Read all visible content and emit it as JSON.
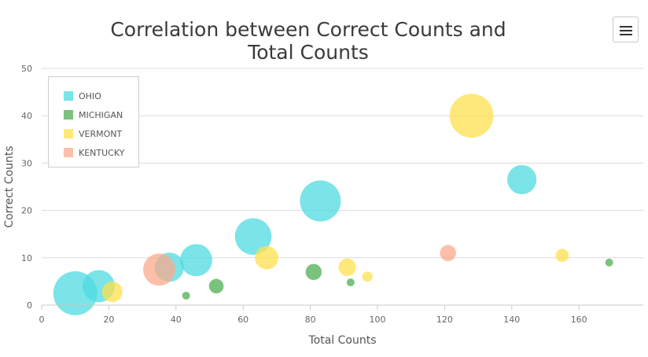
{
  "chart_data": {
    "type": "scatter",
    "bubble": true,
    "title_lines": [
      "Correlation between Correct Counts and",
      "Total Counts"
    ],
    "xlabel": "Total Counts",
    "ylabel": "Correct Counts",
    "xlim": [
      0,
      180
    ],
    "ylim": [
      0,
      50
    ],
    "x_ticks": [
      0,
      20,
      40,
      60,
      80,
      100,
      120,
      140,
      160
    ],
    "y_ticks": [
      0,
      10,
      20,
      30,
      40,
      50
    ],
    "grid": "horizontal",
    "legend_position": "top-left",
    "series": [
      {
        "name": "OHIO",
        "color": "#4ddbe0",
        "points": [
          {
            "x": 10,
            "y": 2.5,
            "z": 30
          },
          {
            "x": 17,
            "y": 4,
            "z": 22
          },
          {
            "x": 38,
            "y": 8,
            "z": 20
          },
          {
            "x": 46,
            "y": 9.5,
            "z": 22
          },
          {
            "x": 63,
            "y": 14.5,
            "z": 25
          },
          {
            "x": 83,
            "y": 22,
            "z": 28
          },
          {
            "x": 143,
            "y": 26.5,
            "z": 20
          }
        ]
      },
      {
        "name": "MICHIGAN",
        "color": "#4caf50",
        "points": [
          {
            "x": 43,
            "y": 2,
            "z": 3
          },
          {
            "x": 52,
            "y": 4,
            "z": 10
          },
          {
            "x": 81,
            "y": 7,
            "z": 11
          },
          {
            "x": 92,
            "y": 4.8,
            "z": 5
          },
          {
            "x": 169,
            "y": 9,
            "z": 5
          }
        ]
      },
      {
        "name": "VERMONT",
        "color": "#ffe04d",
        "points": [
          {
            "x": 21,
            "y": 2.8,
            "z": 14
          },
          {
            "x": 67,
            "y": 10,
            "z": 16
          },
          {
            "x": 91,
            "y": 8,
            "z": 12
          },
          {
            "x": 97,
            "y": 6,
            "z": 7
          },
          {
            "x": 128,
            "y": 40,
            "z": 30
          },
          {
            "x": 155,
            "y": 10.5,
            "z": 9
          }
        ]
      },
      {
        "name": "KENTUCKY",
        "color": "#fca98c",
        "points": [
          {
            "x": 35,
            "y": 7.5,
            "z": 22
          },
          {
            "x": 121,
            "y": 11,
            "z": 11
          }
        ]
      }
    ]
  },
  "menu": {
    "icon": "hamburger-menu-icon"
  }
}
